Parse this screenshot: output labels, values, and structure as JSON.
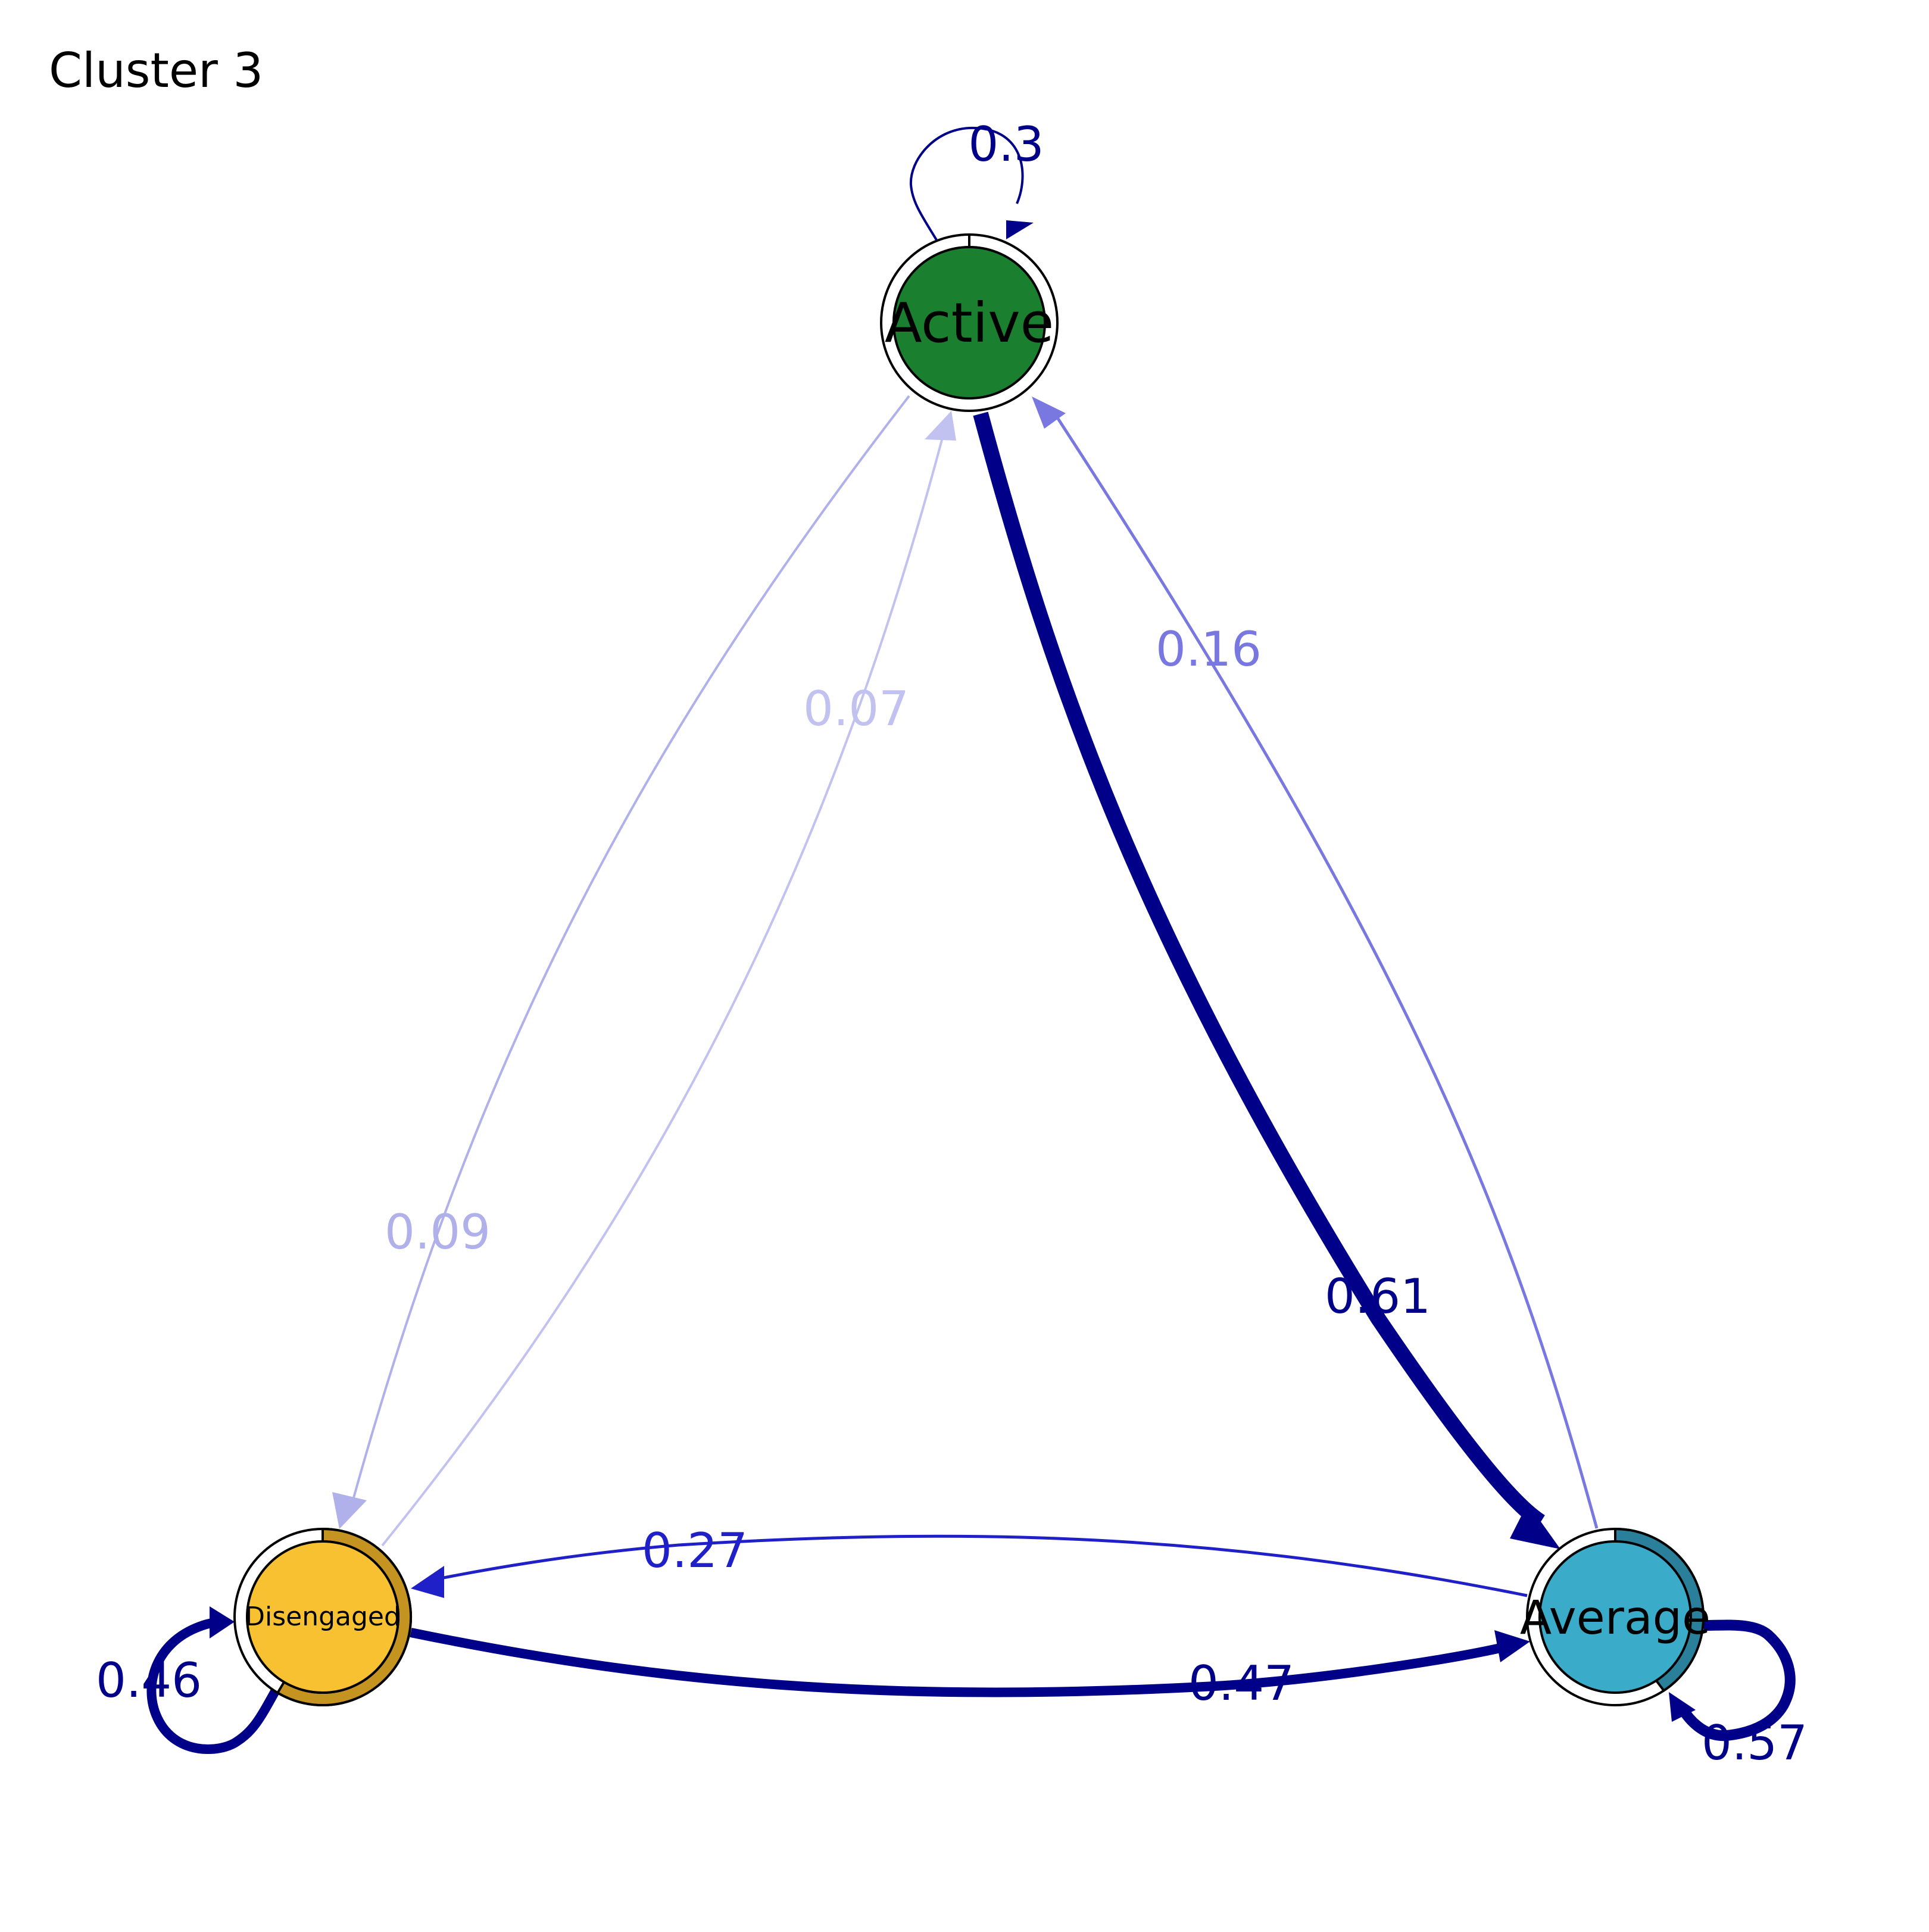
{
  "title": "Cluster 3",
  "nodes": [
    {
      "id": "active",
      "label": "Active",
      "fill": "#1a7f2e",
      "ring": "#ffffff",
      "initial_prob": 0.0
    },
    {
      "id": "average",
      "label": "Average",
      "fill": "#3aabc8",
      "ring": "#2a7f9a",
      "initial_prob": 0.28
    },
    {
      "id": "disengaged",
      "label": "Disengaged",
      "fill": "#f8c132",
      "ring": "#c49320",
      "initial_prob": 0.72
    }
  ],
  "edges": [
    {
      "from": "Active",
      "to": "Active",
      "weight": 0.3,
      "label": "0.3",
      "color": "#000088"
    },
    {
      "from": "Active",
      "to": "Average",
      "weight": 0.61,
      "label": "0.61",
      "color": "#000088"
    },
    {
      "from": "Average",
      "to": "Active",
      "weight": 0.16,
      "label": "0.16",
      "color": "#7878e0"
    },
    {
      "from": "Active",
      "to": "Disengaged",
      "weight": 0.09,
      "label": "0.09",
      "color": "#b0b0ea"
    },
    {
      "from": "Disengaged",
      "to": "Active",
      "weight": 0.07,
      "label": "0.07",
      "color": "#c2c2f0"
    },
    {
      "from": "Average",
      "to": "Disengaged",
      "weight": 0.27,
      "label": "0.27",
      "color": "#2020c8"
    },
    {
      "from": "Disengaged",
      "to": "Average",
      "weight": 0.47,
      "label": "0.47",
      "color": "#000088"
    },
    {
      "from": "Disengaged",
      "to": "Disengaged",
      "weight": 0.46,
      "label": "0.46",
      "color": "#000088"
    },
    {
      "from": "Average",
      "to": "Average",
      "weight": 0.57,
      "label": "0.57",
      "color": "#000088"
    }
  ]
}
